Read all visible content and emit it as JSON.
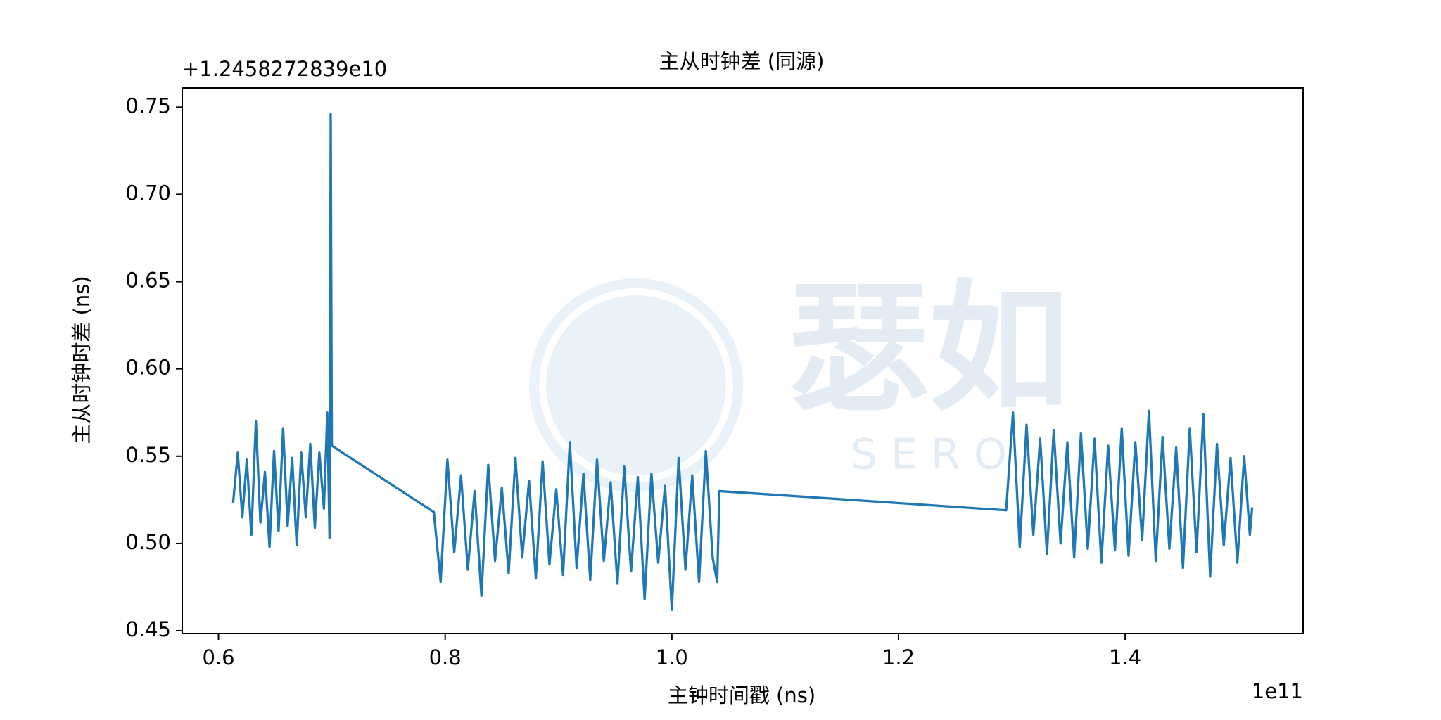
{
  "chart_data": {
    "type": "line",
    "title": "主从时钟差 (同源)",
    "x_label": "主钟时间戳 (ns)",
    "y_label": "主从时钟时差 (ns)",
    "x_offset_label": "1e11",
    "y_offset_label": "+1.2458272839e10",
    "watermark": "瑟如",
    "watermark_sub": "S E R O",
    "xlim": [
      0.568,
      1.557
    ],
    "ylim": [
      0.4484,
      0.761
    ],
    "xticks": [
      0.6,
      0.8,
      {
        "value": 1.0,
        "label": "1.0"
      },
      1.2,
      1.4
    ],
    "yticks": [
      0.45,
      {
        "value": 0.5,
        "label": "0.50"
      },
      0.55,
      {
        "value": 0.6,
        "label": "0.60"
      },
      0.65,
      {
        "value": 0.7,
        "label": "0.70"
      },
      0.75
    ],
    "x": [
      0.613,
      0.617,
      0.621,
      0.625,
      0.629,
      0.633,
      0.637,
      0.641,
      0.645,
      0.649,
      0.653,
      0.657,
      0.661,
      0.665,
      0.669,
      0.673,
      0.677,
      0.681,
      0.685,
      0.689,
      0.693,
      0.696,
      0.698,
      0.699,
      0.7,
      0.79,
      0.796,
      0.802,
      0.808,
      0.814,
      0.82,
      0.826,
      0.832,
      0.838,
      0.844,
      0.85,
      0.856,
      0.862,
      0.868,
      0.874,
      0.88,
      0.886,
      0.892,
      0.898,
      0.904,
      0.91,
      0.916,
      0.922,
      0.928,
      0.934,
      0.94,
      0.946,
      0.952,
      0.958,
      0.964,
      0.97,
      0.976,
      0.982,
      0.988,
      0.994,
      1.0,
      1.006,
      1.012,
      1.018,
      1.024,
      1.03,
      1.036,
      1.04,
      1.042,
      1.295,
      1.301,
      1.307,
      1.313,
      1.319,
      1.325,
      1.331,
      1.337,
      1.343,
      1.349,
      1.355,
      1.361,
      1.367,
      1.373,
      1.379,
      1.385,
      1.391,
      1.397,
      1.403,
      1.409,
      1.415,
      1.421,
      1.427,
      1.433,
      1.439,
      1.445,
      1.451,
      1.457,
      1.463,
      1.469,
      1.475,
      1.481,
      1.487,
      1.493,
      1.499,
      1.505,
      1.51,
      1.512
    ],
    "series": [
      {
        "color": "#1f77b4",
        "values": [
          0.524,
          0.552,
          0.515,
          0.548,
          0.505,
          0.57,
          0.512,
          0.541,
          0.498,
          0.553,
          0.507,
          0.566,
          0.51,
          0.549,
          0.499,
          0.552,
          0.515,
          0.557,
          0.509,
          0.552,
          0.52,
          0.575,
          0.503,
          0.746,
          0.556,
          0.518,
          0.478,
          0.548,
          0.495,
          0.539,
          0.485,
          0.53,
          0.47,
          0.545,
          0.49,
          0.532,
          0.483,
          0.549,
          0.492,
          0.536,
          0.48,
          0.547,
          0.488,
          0.531,
          0.482,
          0.558,
          0.486,
          0.54,
          0.479,
          0.548,
          0.49,
          0.535,
          0.477,
          0.544,
          0.484,
          0.538,
          0.468,
          0.54,
          0.489,
          0.533,
          0.462,
          0.549,
          0.485,
          0.539,
          0.478,
          0.553,
          0.492,
          0.478,
          0.53,
          0.519,
          0.575,
          0.498,
          0.568,
          0.505,
          0.56,
          0.494,
          0.565,
          0.5,
          0.558,
          0.492,
          0.563,
          0.497,
          0.56,
          0.489,
          0.556,
          0.496,
          0.566,
          0.493,
          0.558,
          0.502,
          0.576,
          0.49,
          0.561,
          0.497,
          0.555,
          0.486,
          0.566,
          0.495,
          0.574,
          0.481,
          0.557,
          0.499,
          0.549,
          0.489,
          0.55,
          0.505,
          0.52
        ]
      }
    ]
  }
}
